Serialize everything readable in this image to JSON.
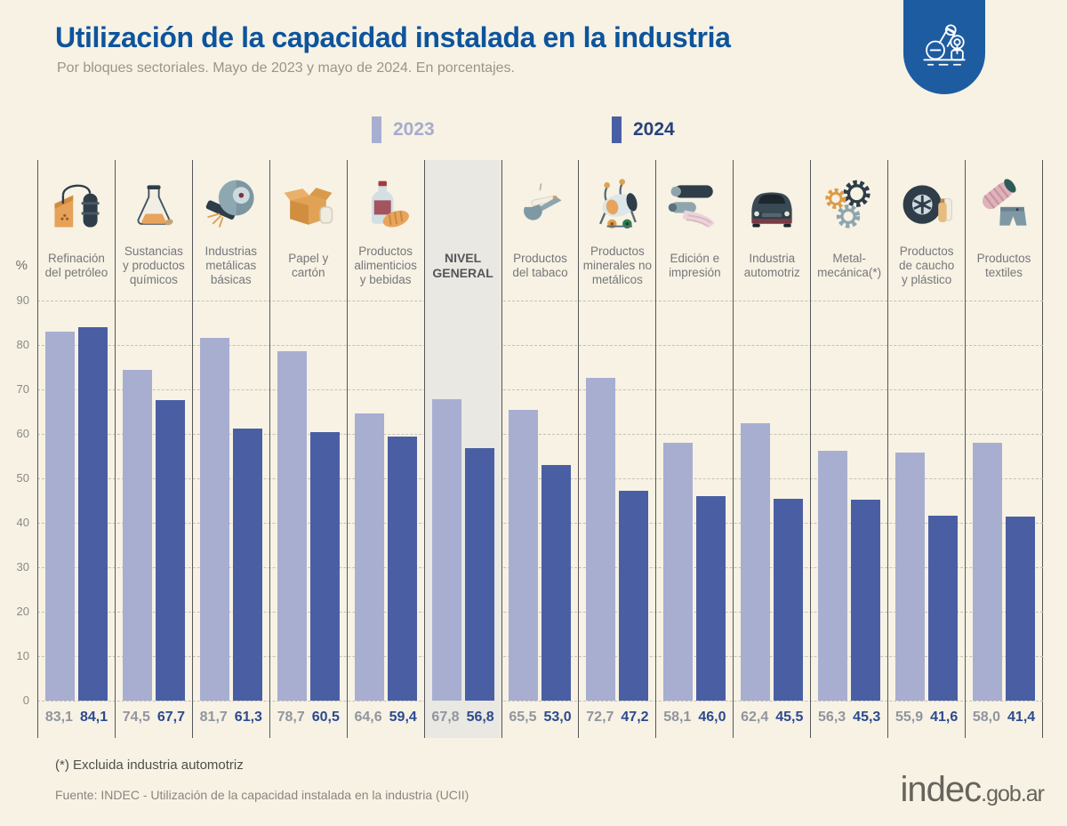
{
  "header": {
    "title": "Utilización de la capacidad instalada en la industria",
    "subtitle": "Por bloques sectoriales. Mayo de 2023 y mayo de 2024. En porcentajes.",
    "badge_color": "#1e5ca1"
  },
  "legend": [
    {
      "label": "2023",
      "color": "#a8aed0"
    },
    {
      "label": "2024",
      "color": "#4a5fa3"
    }
  ],
  "chart_data": {
    "type": "bar",
    "title": "Utilización de la capacidad instalada en la industria",
    "subtitle": "Por bloques sectoriales. Mayo de 2023 y mayo de 2024. En porcentajes.",
    "ylabel": "%",
    "ylim": [
      0,
      90
    ],
    "yticks": [
      90,
      80,
      70,
      60,
      50,
      40,
      30,
      20,
      10,
      0
    ],
    "grid": "horizontal-dashed",
    "legend_position": "top",
    "categories": [
      "Refinación del petróleo",
      "Sustancias y productos químicos",
      "Industrias metálicas básicas",
      "Papel y cartón",
      "Productos alimenticios y bebidas",
      "Nivel general",
      "Productos del tabaco",
      "Productos minerales no metálicos",
      "Edición e impresión",
      "Industria automotriz",
      "Metal-mecánica (*)",
      "Productos de caucho y plástico",
      "Productos textiles"
    ],
    "series": [
      {
        "name": "2023",
        "color": "#a8aed0",
        "values": [
          83.1,
          74.5,
          81.7,
          78.7,
          64.6,
          67.8,
          65.5,
          72.7,
          58.1,
          62.4,
          56.3,
          55.9,
          58.0
        ]
      },
      {
        "name": "2024",
        "color": "#4a5fa3",
        "values": [
          84.1,
          67.7,
          61.3,
          60.5,
          59.4,
          56.8,
          53.0,
          47.2,
          46.0,
          45.5,
          45.3,
          41.6,
          41.4
        ]
      }
    ],
    "columns": [
      {
        "label": "Refinación\ndel petróleo",
        "icon": "oil-refinery-icon",
        "v2023": "83,1",
        "v2024": "84,1",
        "highlight": false
      },
      {
        "label": "Sustancias\ny productos\nquímicos",
        "icon": "chemical-flask-icon",
        "v2023": "74,5",
        "v2024": "67,7",
        "highlight": false
      },
      {
        "label": "Industrias\nmetálicas\nbásicas",
        "icon": "metal-grinder-icon",
        "v2023": "81,7",
        "v2024": "61,3",
        "highlight": false
      },
      {
        "label": "Papel y\ncartón",
        "icon": "cardboard-box-icon",
        "v2023": "78,7",
        "v2024": "60,5",
        "highlight": false
      },
      {
        "label": "Productos\nalimenticios\ny bebidas",
        "icon": "food-beverage-icon",
        "v2023": "64,6",
        "v2024": "59,4",
        "highlight": false
      },
      {
        "label": "NIVEL\nGENERAL",
        "icon": "",
        "v2023": "67,8",
        "v2024": "56,8",
        "highlight": true
      },
      {
        "label": "Productos\ndel tabaco",
        "icon": "tobacco-pipe-icon",
        "v2023": "65,5",
        "v2024": "53,0",
        "highlight": false
      },
      {
        "label": "Productos\nminerales no\nmetálicos",
        "icon": "cement-mixer-icon",
        "v2023": "72,7",
        "v2024": "47,2",
        "highlight": false
      },
      {
        "label": "Edición e\nimpresión",
        "icon": "printing-press-icon",
        "v2023": "58,1",
        "v2024": "46,0",
        "highlight": false
      },
      {
        "label": "Industria\nautomotriz",
        "icon": "car-icon",
        "v2023": "62,4",
        "v2024": "45,5",
        "highlight": false
      },
      {
        "label": "Metal-\nmecánica(*)",
        "icon": "gears-icon",
        "v2023": "56,3",
        "v2024": "45,3",
        "highlight": false
      },
      {
        "label": "Productos\nde caucho\ny plástico",
        "icon": "tire-icon",
        "v2023": "55,9",
        "v2024": "41,6",
        "highlight": false
      },
      {
        "label": "Productos\ntextiles",
        "icon": "textile-icon",
        "v2023": "58,0",
        "v2024": "41,4",
        "highlight": false
      }
    ]
  },
  "footer": {
    "footnote": "(*) Excluida industria automotriz",
    "source": "Fuente: INDEC - Utilización de la capacidad instalada en la industria (UCII)",
    "logo_main": "indec",
    "logo_suffix": ".gob.ar"
  }
}
